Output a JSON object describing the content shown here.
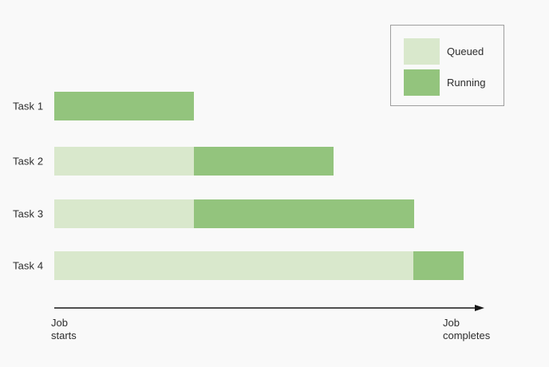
{
  "colors": {
    "background": "#f9f9f9",
    "queued": "#d9e8cc",
    "running": "#93c47d",
    "legend_border": "#9e9e9e",
    "text": "#2d2d2d",
    "axis": "#161616"
  },
  "legend": {
    "items": [
      {
        "label": "Queued",
        "state": "queued"
      },
      {
        "label": "Running",
        "state": "running"
      }
    ]
  },
  "axis": {
    "start_label": "Job\nstarts",
    "end_label": "Job\ncompletes"
  },
  "chart_data": {
    "type": "gantt",
    "title": "",
    "categories": [
      "Task 1",
      "Task 2",
      "Task 3",
      "Task 4"
    ],
    "legend_entries": [
      "Queued",
      "Running"
    ],
    "legend_position": "top-right",
    "grid": false,
    "x_axis": {
      "start": "Job starts",
      "end": "Job completes",
      "units": "percent of job timeline",
      "range": [
        0,
        100
      ]
    },
    "tasks": [
      {
        "label": "Task 1",
        "segments": [
          {
            "state": "running",
            "start": 0,
            "end": 32.5
          }
        ]
      },
      {
        "label": "Task 2",
        "segments": [
          {
            "state": "queued",
            "start": 0,
            "end": 32.5
          },
          {
            "state": "running",
            "start": 32.5,
            "end": 64.9
          }
        ]
      },
      {
        "label": "Task 3",
        "segments": [
          {
            "state": "queued",
            "start": 0,
            "end": 32.5
          },
          {
            "state": "running",
            "start": 32.5,
            "end": 83.7
          }
        ]
      },
      {
        "label": "Task 4",
        "segments": [
          {
            "state": "queued",
            "start": 0,
            "end": 83.5
          },
          {
            "state": "running",
            "start": 83.5,
            "end": 95.2
          }
        ]
      }
    ]
  }
}
